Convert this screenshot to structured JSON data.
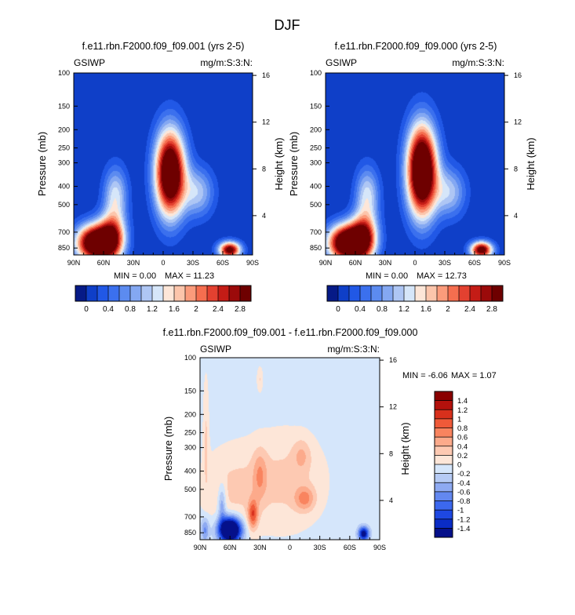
{
  "figure": {
    "main_title": "DJF"
  },
  "level_colors": {
    "abs": [
      "#061a87",
      "#0f3fc8",
      "#2158e6",
      "#3b70ee",
      "#5c8bf0",
      "#84a8f2",
      "#aec6f4",
      "#d6e6f9",
      "#fde6d8",
      "#fcc5ab",
      "#fb9b7b",
      "#f56e4f",
      "#e34130",
      "#c41c16",
      "#9b0a0a",
      "#6e0000"
    ],
    "diff": [
      "#05108a",
      "#0a2cc6",
      "#1e48e2",
      "#3c68ee",
      "#6388f0",
      "#8eaaf2",
      "#b6cbf5",
      "#d5e6fb",
      "#fde6d8",
      "#fdc9b2",
      "#fcaa8b",
      "#f9845f",
      "#ef5a39",
      "#d8301c",
      "#b3110c",
      "#8a0000"
    ]
  },
  "chart_data": [
    {
      "id": "panel-a",
      "type": "contour",
      "title": "f.e11.rbn.F2000.f09_f09.001 (yrs 2-5)",
      "left_label": "GSIWP",
      "right_label": "mg/m:S:3:N:",
      "xlabel": "",
      "ylabel": "Pressure (mb)",
      "y2label": "Height (km)",
      "xlim": [
        -90,
        90
      ],
      "ylim": [
        100,
        925
      ],
      "x_ticks": [
        {
          "v": -90,
          "label": "90N"
        },
        {
          "v": -60,
          "label": "60N"
        },
        {
          "v": -30,
          "label": "30N"
        },
        {
          "v": 0,
          "label": "0"
        },
        {
          "v": 30,
          "label": "30S"
        },
        {
          "v": 60,
          "label": "60S"
        },
        {
          "v": 90,
          "label": "90S"
        }
      ],
      "y_ticks": [
        100,
        150,
        200,
        250,
        300,
        400,
        500,
        700,
        850
      ],
      "height_ticks": [
        4,
        8,
        12,
        16
      ],
      "min_label": "MIN =   0.00",
      "max_label": "MAX =  11.23",
      "levels": [
        0,
        0.2,
        0.4,
        0.6,
        0.8,
        1,
        1.2,
        1.4,
        1.6,
        1.8,
        2,
        2.2,
        2.4,
        2.6,
        2.8
      ],
      "colorbar_labels": [
        "0",
        "0.4",
        "0.8",
        "1.2",
        "1.6",
        "2",
        "2.4",
        "2.8"
      ],
      "cells": [
        {
          "lat": -70,
          "p": 800,
          "w": 18,
          "dlp": 0.22,
          "a": 3.6
        },
        {
          "lat": -52,
          "p": 760,
          "w": 14,
          "dlp": 0.28,
          "a": 2.6
        },
        {
          "lat": -48,
          "p": 450,
          "w": 12,
          "dlp": 0.35,
          "a": 1.3
        },
        {
          "lat": 7,
          "p": 340,
          "w": 15,
          "dlp": 0.52,
          "a": 3.9
        },
        {
          "lat": 35,
          "p": 430,
          "w": 16,
          "dlp": 0.3,
          "a": 1.1
        },
        {
          "lat": 67,
          "p": 870,
          "w": 11,
          "dlp": 0.1,
          "a": 3.1
        }
      ]
    },
    {
      "id": "panel-b",
      "type": "contour",
      "title": "f.e11.rbn.F2000.f09_f09.000 (yrs 2-5)",
      "left_label": "GSIWP",
      "right_label": "mg/m:S:3:N:",
      "xlabel": "",
      "ylabel": "Pressure (mb)",
      "y2label": "Height (km)",
      "xlim": [
        -90,
        90
      ],
      "ylim": [
        100,
        925
      ],
      "x_ticks": [
        {
          "v": -90,
          "label": "90N"
        },
        {
          "v": -60,
          "label": "60N"
        },
        {
          "v": -30,
          "label": "30N"
        },
        {
          "v": 0,
          "label": "0"
        },
        {
          "v": 30,
          "label": "30S"
        },
        {
          "v": 60,
          "label": "60S"
        },
        {
          "v": 90,
          "label": "90S"
        }
      ],
      "y_ticks": [
        100,
        150,
        200,
        250,
        300,
        400,
        500,
        700,
        850
      ],
      "height_ticks": [
        4,
        8,
        12,
        16
      ],
      "min_label": "MIN =   0.00",
      "max_label": "MAX =  12.73",
      "levels": [
        0,
        0.2,
        0.4,
        0.6,
        0.8,
        1,
        1.2,
        1.4,
        1.6,
        1.8,
        2,
        2.2,
        2.4,
        2.6,
        2.8
      ],
      "colorbar_labels": [
        "0",
        "0.4",
        "0.8",
        "1.2",
        "1.6",
        "2",
        "2.4",
        "2.8"
      ],
      "cells": [
        {
          "lat": -70,
          "p": 800,
          "w": 18,
          "dlp": 0.22,
          "a": 3.7
        },
        {
          "lat": -52,
          "p": 760,
          "w": 14,
          "dlp": 0.28,
          "a": 2.7
        },
        {
          "lat": -48,
          "p": 450,
          "w": 12,
          "dlp": 0.35,
          "a": 1.3
        },
        {
          "lat": 7,
          "p": 330,
          "w": 15,
          "dlp": 0.55,
          "a": 4.2
        },
        {
          "lat": 35,
          "p": 430,
          "w": 16,
          "dlp": 0.3,
          "a": 1.1
        },
        {
          "lat": 67,
          "p": 870,
          "w": 11,
          "dlp": 0.1,
          "a": 3.2
        }
      ]
    },
    {
      "id": "panel-c",
      "type": "contour",
      "title": "f.e11.rbn.F2000.f09_f09.001 - f.e11.rbn.F2000.f09_f09.000",
      "left_label": "GSIWP",
      "right_label": "mg/m:S:3:N:",
      "xlabel": "",
      "ylabel": "Pressure (mb)",
      "y2label": "Height (km)",
      "xlim": [
        -90,
        90
      ],
      "ylim": [
        100,
        925
      ],
      "x_ticks": [
        {
          "v": -90,
          "label": "90N"
        },
        {
          "v": -60,
          "label": "60N"
        },
        {
          "v": -30,
          "label": "30N"
        },
        {
          "v": 0,
          "label": "0"
        },
        {
          "v": 30,
          "label": "30S"
        },
        {
          "v": 60,
          "label": "60S"
        },
        {
          "v": 90,
          "label": "90S"
        }
      ],
      "y_ticks": [
        100,
        150,
        200,
        250,
        300,
        400,
        500,
        700,
        850
      ],
      "height_ticks": [
        4,
        8,
        12,
        16
      ],
      "min_label": "MIN =  -6.06",
      "max_label": "MAX =   1.07",
      "levels": [
        -1.4,
        -1.2,
        -1,
        -0.8,
        -0.6,
        -0.4,
        -0.2,
        0,
        0.2,
        0.4,
        0.6,
        0.8,
        1,
        1.2,
        1.4
      ],
      "colorbar_labels": [
        "1.4",
        "1.2",
        "1",
        "0.8",
        "0.6",
        "0.4",
        "0.2",
        "0",
        "-0.2",
        "-0.4",
        "-0.6",
        "-0.8",
        "-1",
        "-1.2",
        "-1.4"
      ],
      "background_value": -0.1,
      "cells": [
        {
          "lat": -5,
          "p": 450,
          "w": 40,
          "dlp": 0.6,
          "a": 0.35
        },
        {
          "lat": -60,
          "p": 500,
          "w": 30,
          "dlp": 0.5,
          "a": 0.3
        },
        {
          "lat": -37,
          "p": 680,
          "w": 5,
          "dlp": 0.18,
          "a": 0.9
        },
        {
          "lat": -30,
          "p": 420,
          "w": 7,
          "dlp": 0.3,
          "a": 0.45
        },
        {
          "lat": 15,
          "p": 560,
          "w": 10,
          "dlp": 0.15,
          "a": 0.6
        },
        {
          "lat": 12,
          "p": 330,
          "w": 9,
          "dlp": 0.2,
          "a": 0.35
        },
        {
          "lat": -84,
          "p": 250,
          "w": 3,
          "dlp": 0.7,
          "a": 0.3
        },
        {
          "lat": -30,
          "p": 130,
          "w": 3,
          "dlp": 0.15,
          "a": 0.3
        },
        {
          "lat": -60,
          "p": 820,
          "w": 11,
          "dlp": 0.15,
          "a": -2.6
        },
        {
          "lat": -68,
          "p": 600,
          "w": 4,
          "dlp": 0.25,
          "a": -0.6
        },
        {
          "lat": -85,
          "p": 820,
          "w": 4,
          "dlp": 0.15,
          "a": -0.6
        },
        {
          "lat": 74,
          "p": 860,
          "w": 5,
          "dlp": 0.08,
          "a": -1.6
        }
      ]
    }
  ]
}
